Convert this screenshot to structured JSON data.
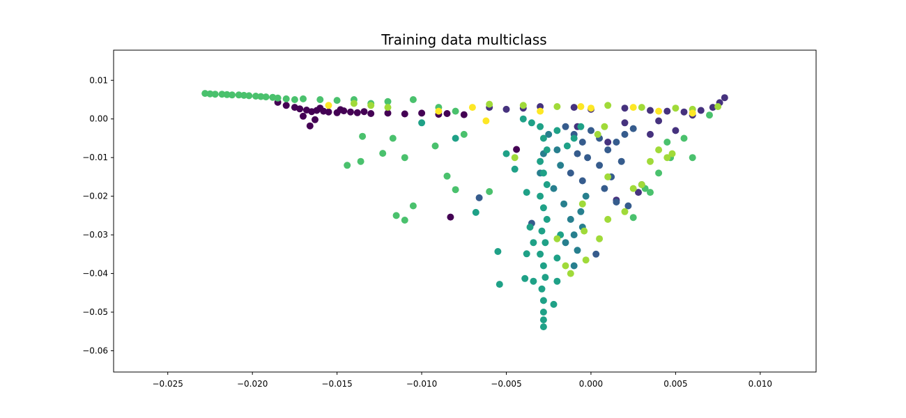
{
  "chart_data": {
    "type": "scatter",
    "title": "Training data multiclass",
    "xlabel": "",
    "ylabel": "",
    "xlim": [
      -0.0282,
      0.0133
    ],
    "ylim": [
      -0.0655,
      0.0178
    ],
    "xticks": [
      -0.025,
      -0.02,
      -0.015,
      -0.01,
      -0.005,
      0.0,
      0.005,
      0.01
    ],
    "xtick_labels": [
      "−0.025",
      "−0.020",
      "−0.015",
      "−0.010",
      "−0.005",
      "0.000",
      "0.005",
      "0.010"
    ],
    "yticks": [
      0.01,
      0.0,
      -0.01,
      -0.02,
      -0.03,
      -0.04,
      -0.05,
      -0.06
    ],
    "ytick_labels": [
      "0.01",
      "0.00",
      "−0.01",
      "−0.02",
      "−0.03",
      "−0.04",
      "−0.05",
      "−0.06"
    ],
    "grid": false,
    "legend": "none",
    "colormap": "viridis",
    "series": [
      {
        "color": "#440154",
        "points": [
          [
            -0.0185,
            0.0043
          ],
          [
            -0.018,
            0.0035
          ],
          [
            -0.0175,
            0.003
          ],
          [
            -0.0172,
            0.0026
          ],
          [
            -0.0168,
            0.0023
          ],
          [
            -0.0165,
            0.0019
          ],
          [
            -0.0162,
            0.0022
          ],
          [
            -0.0158,
            0.002
          ],
          [
            -0.0155,
            0.0018
          ],
          [
            -0.015,
            0.0016
          ],
          [
            -0.0146,
            0.0021
          ],
          [
            -0.0142,
            0.0018
          ],
          [
            -0.0138,
            0.0016
          ],
          [
            -0.0134,
            0.0019
          ],
          [
            -0.013,
            0.0014
          ],
          [
            -0.012,
            0.0015
          ],
          [
            -0.011,
            0.0013
          ],
          [
            -0.01,
            0.0015
          ],
          [
            -0.009,
            0.0012
          ],
          [
            -0.0085,
            0.0014
          ],
          [
            -0.0075,
            0.0011
          ],
          [
            -0.017,
            0.0007
          ],
          [
            -0.0163,
            -0.0002
          ],
          [
            -0.0166,
            -0.0018
          ],
          [
            -0.0083,
            -0.0254
          ],
          [
            -0.0044,
            -0.0079
          ],
          [
            -0.016,
            0.0028
          ],
          [
            -0.0148,
            0.0024
          ]
        ]
      },
      {
        "color": "#46327e",
        "points": [
          [
            -0.006,
            0.003
          ],
          [
            -0.005,
            0.0025
          ],
          [
            -0.004,
            0.0028
          ],
          [
            -0.003,
            0.0032
          ],
          [
            -0.001,
            0.003
          ],
          [
            0.0,
            0.0025
          ],
          [
            0.002,
            0.0028
          ],
          [
            0.0035,
            0.0022
          ],
          [
            0.0045,
            0.002
          ],
          [
            0.0055,
            0.0018
          ],
          [
            0.0065,
            0.0022
          ],
          [
            0.0072,
            0.003
          ],
          [
            0.0076,
            0.0042
          ],
          [
            0.0079,
            0.0055
          ],
          [
            0.006,
            0.001
          ],
          [
            0.004,
            -0.0005
          ],
          [
            0.005,
            -0.003
          ],
          [
            0.002,
            -0.001
          ],
          [
            0.003,
            -0.017
          ],
          [
            0.0015,
            -0.021
          ],
          [
            0.0028,
            -0.019
          ],
          [
            -0.0008,
            -0.002
          ],
          [
            0.001,
            -0.006
          ],
          [
            0.0035,
            -0.004
          ]
        ]
      },
      {
        "color": "#365c8d",
        "points": [
          [
            -0.0015,
            -0.002
          ],
          [
            -0.001,
            -0.004
          ],
          [
            -0.0005,
            -0.006
          ],
          [
            0.0,
            -0.003
          ],
          [
            0.0005,
            -0.005
          ],
          [
            0.001,
            -0.008
          ],
          [
            0.0015,
            -0.006
          ],
          [
            0.002,
            -0.004
          ],
          [
            0.0025,
            -0.0025
          ],
          [
            -0.0002,
            -0.01
          ],
          [
            0.0005,
            -0.012
          ],
          [
            0.0012,
            -0.015
          ],
          [
            -0.0008,
            -0.009
          ],
          [
            0.0018,
            -0.011
          ],
          [
            -0.0066,
            -0.0204
          ],
          [
            -0.0035,
            -0.027
          ],
          [
            0.0003,
            -0.035
          ],
          [
            0.0015,
            -0.0215
          ],
          [
            0.0022,
            -0.0225
          ],
          [
            -0.0005,
            -0.016
          ],
          [
            0.0008,
            -0.018
          ],
          [
            -0.0012,
            -0.014
          ]
        ]
      },
      {
        "color": "#277f8e",
        "points": [
          [
            -0.0025,
            -0.004
          ],
          [
            -0.002,
            -0.008
          ],
          [
            -0.0018,
            -0.012
          ],
          [
            -0.0022,
            -0.018
          ],
          [
            -0.0016,
            -0.022
          ],
          [
            -0.0012,
            -0.026
          ],
          [
            -0.001,
            -0.03
          ],
          [
            -0.0015,
            -0.032
          ],
          [
            -0.0008,
            -0.034
          ],
          [
            -0.0005,
            -0.028
          ],
          [
            -0.0003,
            -0.02
          ],
          [
            -0.0028,
            -0.009
          ],
          [
            -0.003,
            -0.014
          ],
          [
            -0.001,
            -0.038
          ],
          [
            -0.0006,
            -0.024
          ]
        ]
      },
      {
        "color": "#1fa187",
        "points": [
          [
            -0.004,
            0.0
          ],
          [
            -0.0035,
            -0.001
          ],
          [
            -0.003,
            -0.002
          ],
          [
            -0.0028,
            -0.005
          ],
          [
            -0.0026,
            -0.008
          ],
          [
            -0.003,
            -0.011
          ],
          [
            -0.0028,
            -0.014
          ],
          [
            -0.0026,
            -0.017
          ],
          [
            -0.003,
            -0.02
          ],
          [
            -0.0028,
            -0.023
          ],
          [
            -0.0026,
            -0.026
          ],
          [
            -0.0029,
            -0.029
          ],
          [
            -0.0027,
            -0.032
          ],
          [
            -0.003,
            -0.035
          ],
          [
            -0.0028,
            -0.038
          ],
          [
            -0.0027,
            -0.041
          ],
          [
            -0.0029,
            -0.044
          ],
          [
            -0.0028,
            -0.047
          ],
          [
            -0.0028,
            -0.05
          ],
          [
            -0.0028,
            -0.052
          ],
          [
            -0.0028,
            -0.0538
          ],
          [
            -0.0022,
            -0.048
          ],
          [
            -0.002,
            -0.042
          ],
          [
            -0.002,
            -0.036
          ],
          [
            -0.0018,
            -0.03
          ],
          [
            -0.0034,
            -0.032
          ],
          [
            -0.0034,
            -0.042
          ],
          [
            -0.0036,
            -0.028
          ],
          [
            -0.0038,
            -0.019
          ],
          [
            -0.0045,
            -0.013
          ],
          [
            -0.005,
            -0.009
          ],
          [
            -0.0055,
            -0.0343
          ],
          [
            -0.0054,
            -0.0428
          ],
          [
            -0.0068,
            -0.0242
          ],
          [
            -0.008,
            -0.005
          ],
          [
            -0.01,
            -0.001
          ],
          [
            -0.002,
            -0.003
          ],
          [
            -0.001,
            -0.005
          ],
          [
            -0.0006,
            -0.002
          ],
          [
            -0.0014,
            -0.007
          ],
          [
            -0.0038,
            -0.0349
          ],
          [
            -0.0039,
            -0.0413
          ]
        ]
      },
      {
        "color": "#4ac16d",
        "points": [
          [
            -0.0228,
            0.0066
          ],
          [
            -0.0225,
            0.0065
          ],
          [
            -0.0222,
            0.0064
          ],
          [
            -0.0218,
            0.0064
          ],
          [
            -0.0215,
            0.0063
          ],
          [
            -0.0212,
            0.0062
          ],
          [
            -0.0208,
            0.0062
          ],
          [
            -0.0205,
            0.0061
          ],
          [
            -0.0202,
            0.006
          ],
          [
            -0.0198,
            0.0059
          ],
          [
            -0.0195,
            0.0058
          ],
          [
            -0.0192,
            0.0057
          ],
          [
            -0.0188,
            0.0056
          ],
          [
            -0.0185,
            0.0054
          ],
          [
            -0.018,
            0.0052
          ],
          [
            -0.0175,
            0.005
          ],
          [
            -0.017,
            0.0052
          ],
          [
            -0.016,
            0.005
          ],
          [
            -0.015,
            0.0048
          ],
          [
            -0.014,
            0.005
          ],
          [
            -0.013,
            0.004
          ],
          [
            -0.012,
            0.0045
          ],
          [
            -0.0105,
            0.005
          ],
          [
            -0.009,
            0.003
          ],
          [
            -0.008,
            0.002
          ],
          [
            -0.0123,
            -0.0089
          ],
          [
            -0.0136,
            -0.011
          ],
          [
            -0.0144,
            -0.012
          ],
          [
            -0.0117,
            -0.005
          ],
          [
            -0.011,
            -0.01
          ],
          [
            -0.0105,
            -0.0225
          ],
          [
            -0.0115,
            -0.025
          ],
          [
            -0.011,
            -0.0262
          ],
          [
            -0.0085,
            -0.0148
          ],
          [
            -0.008,
            -0.0183
          ],
          [
            -0.006,
            -0.0188
          ],
          [
            -0.0092,
            -0.007
          ],
          [
            -0.0075,
            -0.004
          ],
          [
            -0.0135,
            -0.0045
          ],
          [
            0.0045,
            -0.006
          ],
          [
            0.0055,
            -0.005
          ],
          [
            0.006,
            -0.01
          ],
          [
            0.004,
            -0.014
          ],
          [
            0.0035,
            -0.019
          ],
          [
            0.0025,
            -0.0255
          ],
          [
            0.0047,
            -0.01
          ],
          [
            0.0032,
            -0.018
          ],
          [
            0.007,
            0.001
          ]
        ]
      },
      {
        "color": "#a0da39",
        "points": [
          [
            -0.014,
            0.004
          ],
          [
            -0.013,
            0.0035
          ],
          [
            -0.012,
            0.003
          ],
          [
            -0.006,
            0.0038
          ],
          [
            -0.004,
            0.0035
          ],
          [
            -0.002,
            0.0032
          ],
          [
            0.001,
            0.0035
          ],
          [
            0.003,
            0.003
          ],
          [
            0.005,
            0.0028
          ],
          [
            0.006,
            0.0025
          ],
          [
            0.0075,
            0.0032
          ],
          [
            0.004,
            -0.008
          ],
          [
            0.0045,
            -0.01
          ],
          [
            0.003,
            -0.017
          ],
          [
            0.0025,
            -0.018
          ],
          [
            0.002,
            -0.024
          ],
          [
            0.001,
            -0.026
          ],
          [
            -0.0005,
            -0.022
          ],
          [
            -0.0004,
            -0.029
          ],
          [
            -0.0015,
            -0.038
          ],
          [
            -0.0012,
            -0.04
          ],
          [
            0.0005,
            -0.031
          ],
          [
            -0.002,
            -0.031
          ],
          [
            -0.0003,
            -0.0365
          ],
          [
            0.0035,
            -0.011
          ],
          [
            0.0048,
            -0.009
          ],
          [
            0.001,
            -0.015
          ],
          [
            0.0004,
            -0.004
          ],
          [
            -0.0045,
            -0.01
          ],
          [
            0.0008,
            -0.002
          ]
        ]
      },
      {
        "color": "#fde725",
        "points": [
          [
            -0.0155,
            0.0035
          ],
          [
            -0.007,
            0.003
          ],
          [
            -0.0062,
            -0.0005
          ],
          [
            -0.003,
            0.002
          ],
          [
            0.0,
            0.0028
          ],
          [
            0.0025,
            0.003
          ],
          [
            0.004,
            0.002
          ],
          [
            0.006,
            0.0015
          ],
          [
            -0.009,
            0.002
          ],
          [
            -0.0006,
            0.0032
          ]
        ]
      }
    ]
  }
}
